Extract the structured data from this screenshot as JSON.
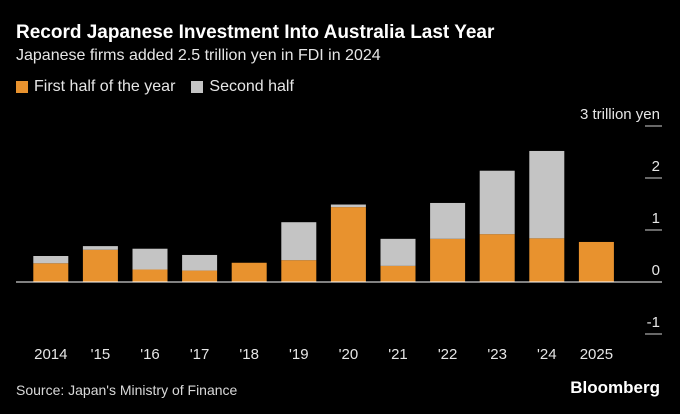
{
  "chart_data": {
    "type": "bar",
    "stacked": true,
    "title": "Record Japanese Investment Into Australia Last Year",
    "subtitle": "Japanese firms added 2.5 trillion yen in FDI in 2024",
    "unit_label": "3 trillion yen",
    "categories": [
      "2014",
      "'15",
      "'16",
      "'17",
      "'18",
      "'19",
      "'20",
      "'21",
      "'22",
      "'23",
      "'24",
      "2025"
    ],
    "series": [
      {
        "name": "First half of the year",
        "color": "#e8922e",
        "values": [
          0.36,
          0.62,
          0.24,
          0.22,
          0.37,
          0.42,
          1.44,
          0.31,
          0.83,
          0.92,
          0.84,
          0.77
        ]
      },
      {
        "name": "Second half",
        "color": "#c4c4c4",
        "values": [
          0.14,
          0.07,
          0.4,
          0.3,
          0.0,
          0.73,
          0.05,
          0.52,
          0.69,
          1.22,
          1.68,
          0.0
        ]
      }
    ],
    "ylim": [
      -1,
      3
    ],
    "yticks": [
      -1,
      0,
      1,
      2,
      3
    ],
    "ytick_labels": [
      "-1",
      "0",
      "1",
      "2",
      "3 trillion yen"
    ]
  },
  "source": "Source: Japan's Ministry of Finance",
  "brand": "Bloomberg"
}
